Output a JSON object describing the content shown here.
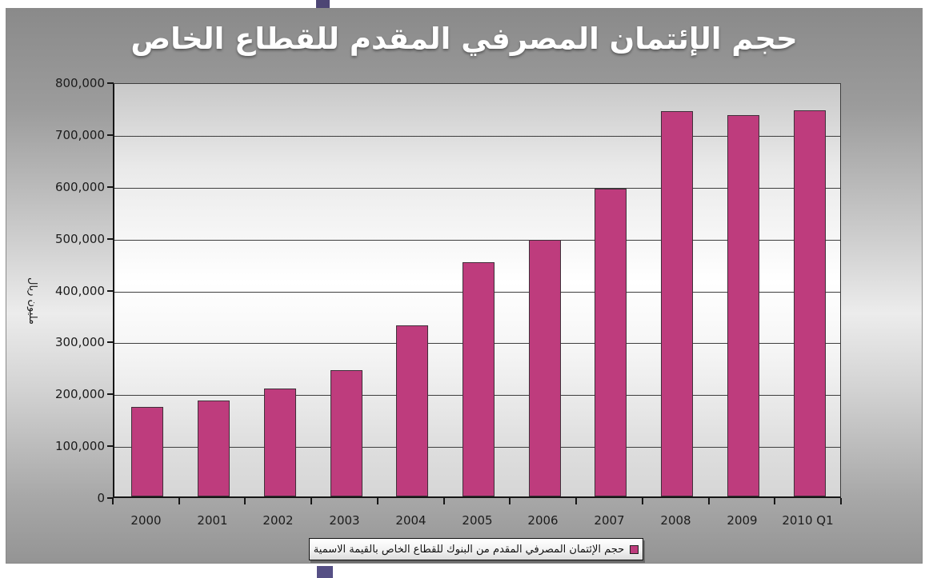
{
  "page": {
    "ornament_top_color": "#4d4574",
    "ornament_bottom_color": "#565085"
  },
  "chart_data": {
    "type": "bar",
    "title": "حجم الإئتمان المصرفي المقدم للقطاع الخاص",
    "ylabel": "مليون ريال",
    "xlabel": "",
    "categories": [
      "2000",
      "2001",
      "2002",
      "2003",
      "2004",
      "2005",
      "2006",
      "2007",
      "2008",
      "2009",
      "2010 Q1"
    ],
    "series": [
      {
        "name": "حجم الإئتمان المصرفي المقدم من البنوك للقطاع الخاص بالقيمة الاسمية",
        "values": [
          172000,
          185000,
          208000,
          244000,
          330000,
          452000,
          495000,
          593000,
          743000,
          735000,
          745000
        ]
      }
    ],
    "ylim": [
      0,
      800000
    ],
    "y_step": 100000,
    "y_tick_labels": [
      "0",
      "100,000",
      "200,000",
      "300,000",
      "400,000",
      "500,000",
      "600,000",
      "700,000",
      "800,000"
    ],
    "grid": true,
    "legend_position": "bottom",
    "bar_color": "#be3c7d",
    "title_color": "#ffffff"
  }
}
